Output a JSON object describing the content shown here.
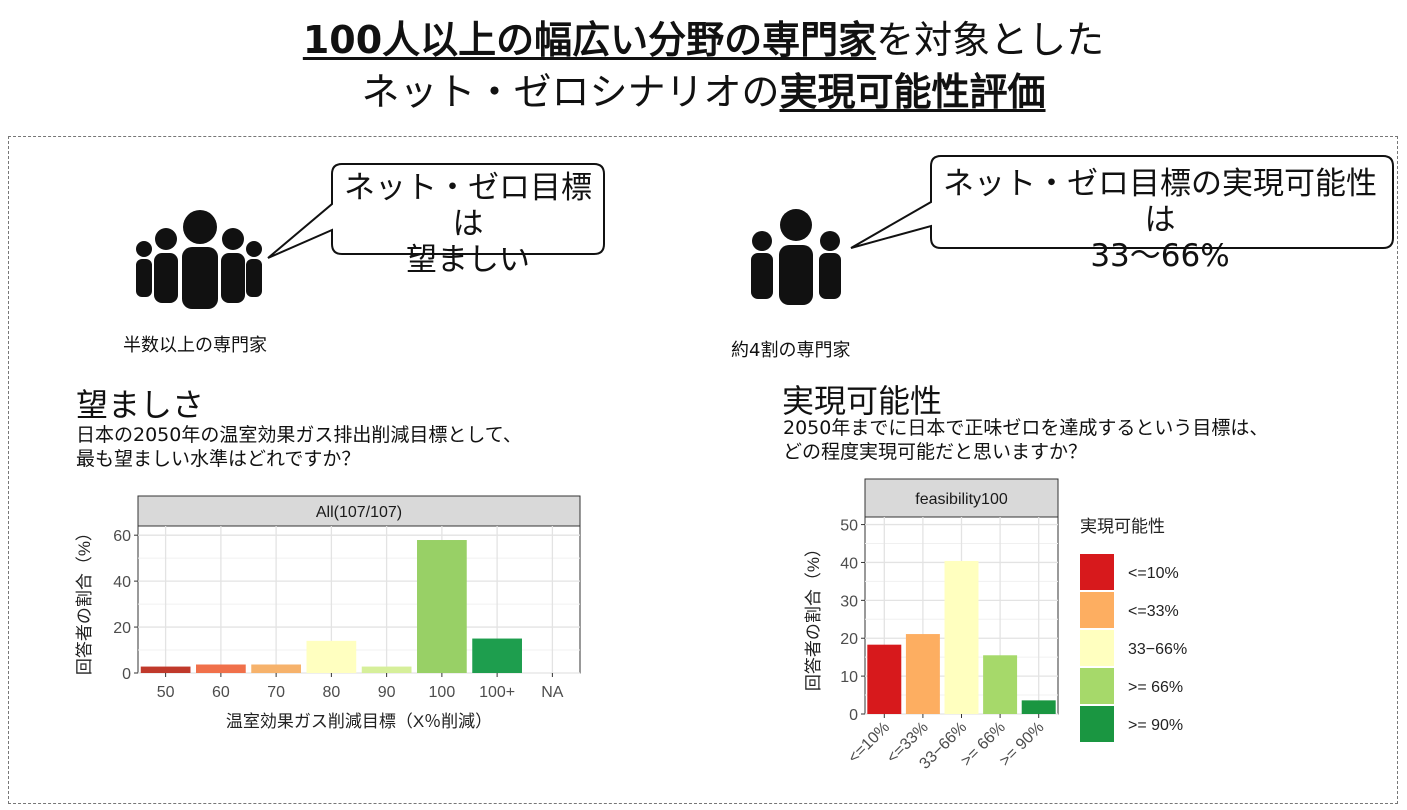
{
  "page_title": {
    "line1_bold": "100人以上の幅広い分野の専門家",
    "line1_rest": "を対象とした",
    "line2_plain": "ネット・ゼロシナリオの",
    "line2_bold": "実現可能性評価"
  },
  "left": {
    "bubble_line1": "ネット・ゼロ目標は",
    "bubble_line2": "望ましい",
    "group_caption": "半数以上の専門家",
    "heading": "望ましさ",
    "question_line1": "日本の2050年の温室効果ガス排出削減目標として、",
    "question_line2": "最も望ましい水準はどれですか？"
  },
  "right": {
    "bubble_line1": "ネット・ゼロ目標の実現可能性は",
    "bubble_line2": "33〜66%",
    "group_caption": "約4割の専門家",
    "heading": "実現可能性",
    "question_line1": "2050年までに日本で正味ゼロを達成するという目標は、",
    "question_line2": "どの程度実現可能だと思いますか？"
  },
  "chart_data": [
    {
      "type": "bar",
      "facet_label": "All(107/107)",
      "categories": [
        "50",
        "60",
        "70",
        "80",
        "90",
        "100",
        "100+",
        "NA"
      ],
      "values": [
        2.8,
        3.7,
        3.7,
        14.0,
        2.8,
        57.9,
        15.0,
        0
      ],
      "colors": [
        "#c0392b",
        "#f0704a",
        "#f6b26b",
        "#ffffc0",
        "#d6ef9a",
        "#98d066",
        "#1e9e4e",
        "#cccccc"
      ],
      "ylim": [
        0,
        64
      ],
      "yticks": [
        0,
        20,
        40,
        60
      ],
      "xlabel": "温室効果ガス削減目標（X％削減）",
      "ylabel": "回答者の割合（%）",
      "grid": true
    },
    {
      "type": "bar",
      "facet_label": "feasibility100",
      "categories": [
        "<=10%",
        "<=33%",
        "33−66%",
        ">= 66%",
        ">= 90%"
      ],
      "values": [
        18.3,
        21.1,
        40.4,
        15.5,
        3.6
      ],
      "colors": [
        "#d7191c",
        "#fdae61",
        "#ffffbf",
        "#a6d96a",
        "#1a9641"
      ],
      "ylim": [
        0,
        52
      ],
      "yticks": [
        0,
        10,
        20,
        30,
        40,
        50
      ],
      "xlabel": "",
      "ylabel": "回答者の割合（%）",
      "legend_title": "実現可能性",
      "legend_labels": [
        "<=10%",
        "<=33%",
        "33−66%",
        ">= 66%",
        ">= 90%"
      ],
      "legend_position": "right",
      "grid": true
    }
  ]
}
